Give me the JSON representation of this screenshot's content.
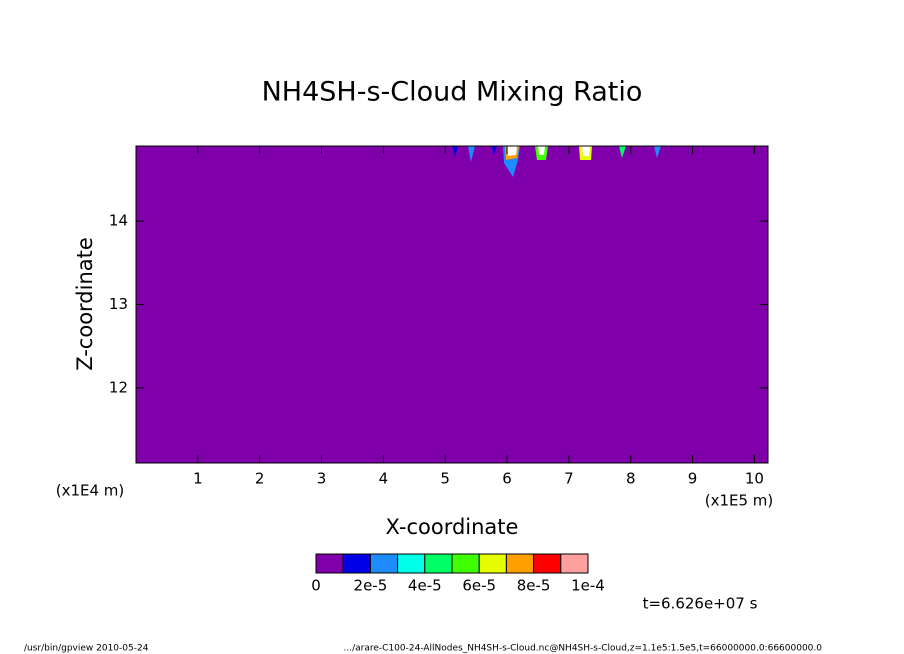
{
  "chart_data": {
    "type": "contour",
    "title": "NH4SH-s-Cloud Mixing Ratio",
    "x_label": "X-coordinate",
    "y_label": "Z-coordinate",
    "x_unit": "(x1E5 m)",
    "y_unit": "(x1E4 m)",
    "xlim": [
      0,
      10.22
    ],
    "ylim": [
      11.1,
      14.9
    ],
    "xticks": [
      1,
      2,
      3,
      4,
      5,
      6,
      7,
      8,
      9,
      10
    ],
    "yticks": [
      12,
      13,
      14
    ],
    "fill_color": "#7f00aa",
    "colorbar": {
      "levels": [
        0,
        1e-05,
        2e-05,
        3e-05,
        4e-05,
        5e-05,
        6e-05,
        7e-05,
        8e-05,
        9e-05,
        0.0001
      ],
      "colors": [
        "#7f00aa",
        "#0000e6",
        "#1e8cff",
        "#00ffe6",
        "#00ff66",
        "#40ff00",
        "#e6ff00",
        "#ffa000",
        "#ff0000",
        "#ffa0a0"
      ],
      "ticks": [
        0,
        {
          "value": 2e-05,
          "label": "2e-5"
        },
        {
          "value": 4e-05,
          "label": "4e-5"
        },
        {
          "value": 6e-05,
          "label": "6e-5"
        },
        {
          "value": 8e-05,
          "label": "8e-5"
        },
        {
          "value": 0.0001,
          "label": "1e-4"
        }
      ]
    },
    "annotation": "t=6.626e+07 s",
    "footer_left": "/usr/bin/gpview  2010-05-24",
    "footer_right": ".../arare-C100-24-AllNodes_NH4SH-s-Cloud.nc@NH4SH-s-Cloud,z=1.1e5:1.5e5,t=66000000.0:66600000.0"
  }
}
